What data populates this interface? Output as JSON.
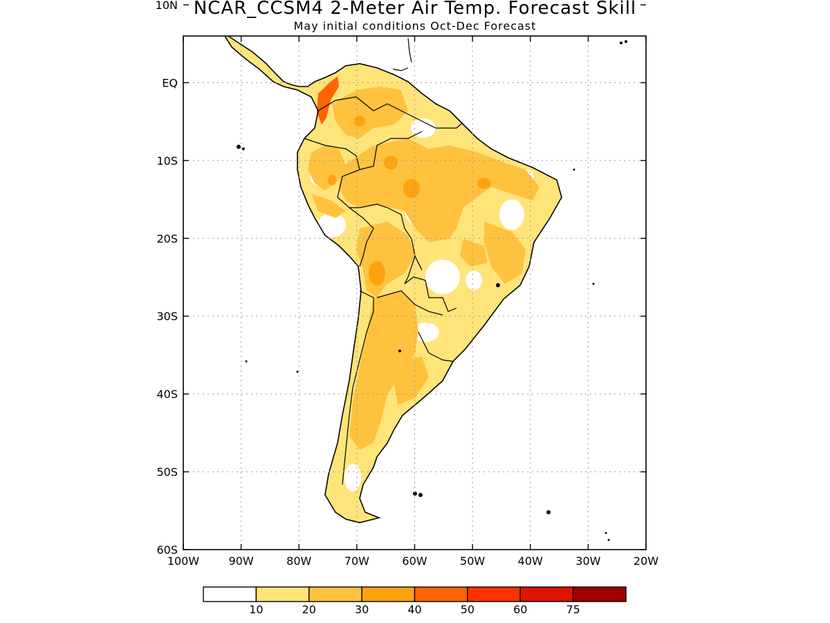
{
  "header": {
    "title": "NCAR_CCSM4 2-Meter Air Temp. Forecast Skill",
    "subtitle": "May initial conditions  Oct-Dec Forecast"
  },
  "map": {
    "lon_range": [
      -100,
      -20
    ],
    "lat_range": [
      -60,
      6
    ],
    "lon_ticks": [
      {
        "value": -100,
        "label": "100W"
      },
      {
        "value": -90,
        "label": "90W"
      },
      {
        "value": -80,
        "label": "80W"
      },
      {
        "value": -70,
        "label": "70W"
      },
      {
        "value": -60,
        "label": "60W"
      },
      {
        "value": -50,
        "label": "50W"
      },
      {
        "value": -40,
        "label": "40W"
      },
      {
        "value": -30,
        "label": "30W"
      },
      {
        "value": -20,
        "label": "20W"
      }
    ],
    "lat_ticks": [
      {
        "value": 10,
        "label": "10N"
      },
      {
        "value": 0,
        "label": "EQ"
      },
      {
        "value": -10,
        "label": "10S"
      },
      {
        "value": -20,
        "label": "20S"
      },
      {
        "value": -30,
        "label": "30S"
      },
      {
        "value": -40,
        "label": "40S"
      },
      {
        "value": -50,
        "label": "50S"
      },
      {
        "value": -60,
        "label": "60S"
      }
    ],
    "grid": true
  },
  "legend": {
    "colors": [
      "#ffffff",
      "#ffe47a",
      "#ffc23e",
      "#ffa210",
      "#ff6400",
      "#ff3200",
      "#dc1400",
      "#a00000"
    ],
    "labels": [
      "10",
      "20",
      "30",
      "40",
      "50",
      "60",
      "75"
    ]
  }
}
